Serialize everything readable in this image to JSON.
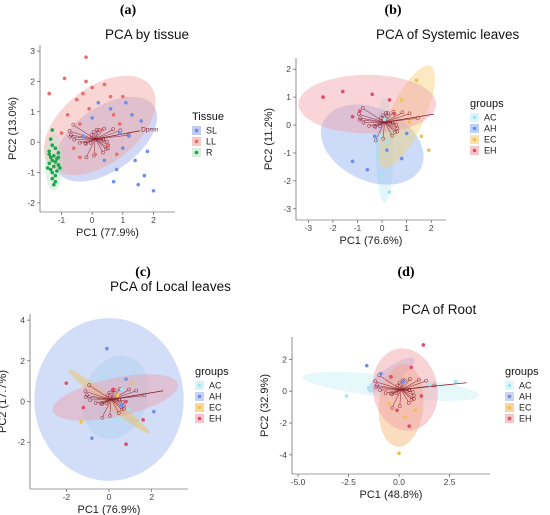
{
  "chart_data": [
    {
      "panel_letter": "(a)",
      "type": "scatter",
      "title": "PCA by tissue",
      "xlabel": "PC1 (77.9%)",
      "ylabel": "PC2 (13.0%)",
      "xlim": [
        -1.7,
        2.7
      ],
      "ylim": [
        -2.3,
        3.2
      ],
      "xticks": [
        -1,
        0,
        1,
        2
      ],
      "yticks": [
        -2,
        -1,
        0,
        1,
        2,
        3
      ],
      "grid": false,
      "legend_title": "Tissue",
      "legend_position": "right",
      "series": [
        {
          "name": "SL",
          "color": "#6f8ee8",
          "fill": "#9aa9e8",
          "ellipse": {
            "cx": 0.45,
            "cy": 0.1,
            "rx": 1.9,
            "ry": 1.05,
            "angle": -35
          },
          "points": [
            [
              0.2,
              1.3
            ],
            [
              0.6,
              1.1
            ],
            [
              1.3,
              0.9
            ],
            [
              1.6,
              0.7
            ],
            [
              0.9,
              0.3
            ],
            [
              1.2,
              0.2
            ],
            [
              1.0,
              -0.2
            ],
            [
              1.4,
              -0.6
            ],
            [
              1.7,
              -1.1
            ],
            [
              0.8,
              -0.9
            ],
            [
              1.5,
              -1.4
            ],
            [
              2.0,
              -1.6
            ],
            [
              0.4,
              -0.6
            ],
            [
              1.1,
              1.3
            ],
            [
              0.0,
              0.8
            ],
            [
              -0.3,
              0.2
            ],
            [
              1.8,
              -0.3
            ],
            [
              0.7,
              -1.3
            ]
          ]
        },
        {
          "name": "LL",
          "color": "#e86d6d",
          "fill": "#f2a49e",
          "ellipse": {
            "cx": 0.25,
            "cy": 0.55,
            "rx": 2.1,
            "ry": 1.25,
            "angle": -38
          },
          "points": [
            [
              -1.4,
              1.6
            ],
            [
              -0.9,
              2.1
            ],
            [
              -0.2,
              2.8
            ],
            [
              0.0,
              1.8
            ],
            [
              0.4,
              1.9
            ],
            [
              -0.5,
              1.4
            ],
            [
              -0.8,
              0.9
            ],
            [
              -0.1,
              1.1
            ],
            [
              0.6,
              1.5
            ],
            [
              -1.0,
              0.3
            ],
            [
              -0.4,
              0.6
            ],
            [
              0.3,
              0.4
            ],
            [
              0.9,
              0.6
            ],
            [
              -0.6,
              -0.2
            ],
            [
              0.1,
              -0.4
            ],
            [
              -0.3,
              1.6
            ],
            [
              0.8,
              -0.4
            ],
            [
              1.0,
              1.5
            ],
            [
              -0.4,
              -0.5
            ],
            [
              0.5,
              -0.1
            ],
            [
              -0.2,
              2.0
            ],
            [
              0.7,
              0.9
            ]
          ]
        },
        {
          "name": "R",
          "color": "#1aa64a",
          "fill": "#bfe3c7",
          "ellipse": {
            "cx": -1.25,
            "cy": -0.65,
            "rx": 0.3,
            "ry": 0.95,
            "angle": 0
          },
          "points": [
            [
              -1.3,
              -0.1
            ],
            [
              -1.2,
              -0.2
            ],
            [
              -1.4,
              -0.3
            ],
            [
              -1.1,
              -0.35
            ],
            [
              -1.25,
              -0.45
            ],
            [
              -1.35,
              -0.5
            ],
            [
              -1.15,
              -0.55
            ],
            [
              -1.3,
              -0.6
            ],
            [
              -1.2,
              -0.65
            ],
            [
              -1.4,
              -0.7
            ],
            [
              -1.1,
              -0.75
            ],
            [
              -1.25,
              -0.8
            ],
            [
              -1.35,
              -0.9
            ],
            [
              -1.15,
              -0.95
            ],
            [
              -1.3,
              -1.0
            ],
            [
              -1.2,
              -1.1
            ],
            [
              -1.05,
              -0.85
            ],
            [
              -1.45,
              -0.85
            ],
            [
              -1.3,
              -1.2
            ],
            [
              -1.2,
              -1.3
            ],
            [
              -1.1,
              -0.5
            ],
            [
              -1.4,
              -0.4
            ],
            [
              -1.3,
              0.4
            ],
            [
              -1.35,
              0.1
            ],
            [
              -1.25,
              -1.4
            ]
          ]
        }
      ],
      "annotation": "Dpmn"
    },
    {
      "panel_letter": "(b)",
      "type": "scatter",
      "title": "PCA of Systemic leaves",
      "xlabel": "PC1 (76.6%)",
      "ylabel": "PC2 (11.2%)",
      "xlim": [
        -3.5,
        2.6
      ],
      "ylim": [
        -3.4,
        2.4
      ],
      "xticks": [
        -3,
        -2,
        -1,
        0,
        1,
        2
      ],
      "yticks": [
        -3,
        -2,
        -1,
        0,
        1,
        2
      ],
      "grid": false,
      "legend_title": "groups",
      "legend_position": "right",
      "series": [
        {
          "name": "AC",
          "color": "#9fe6ef",
          "fill": "#bfeef3",
          "ellipse": {
            "cx": 0.1,
            "cy": -0.9,
            "rx": 0.35,
            "ry": 1.9,
            "angle": 0
          },
          "points": [
            [
              0.0,
              -1.8
            ],
            [
              0.3,
              -2.4
            ],
            [
              -0.2,
              -1.1
            ],
            [
              0.2,
              -0.6
            ],
            [
              0.1,
              0.2
            ]
          ]
        },
        {
          "name": "AH",
          "color": "#6f8ee8",
          "fill": "#8fb0ee",
          "ellipse": {
            "cx": -0.4,
            "cy": -0.7,
            "rx": 2.2,
            "ry": 1.3,
            "angle": 25
          },
          "points": [
            [
              -1.2,
              -1.3
            ],
            [
              -0.6,
              -1.6
            ],
            [
              0.2,
              -0.9
            ],
            [
              0.8,
              -1.2
            ],
            [
              -0.3,
              -0.4
            ],
            [
              1.0,
              -0.3
            ]
          ]
        },
        {
          "name": "EC",
          "color": "#f0c24b",
          "fill": "#f5cf75",
          "ellipse": {
            "cx": 1.0,
            "cy": 0.3,
            "rx": 0.7,
            "ry": 2.0,
            "angle": 25
          },
          "points": [
            [
              1.4,
              1.6
            ],
            [
              0.8,
              0.9
            ],
            [
              1.6,
              -0.4
            ],
            [
              1.1,
              0.1
            ],
            [
              1.9,
              -0.9
            ]
          ]
        },
        {
          "name": "EH",
          "color": "#e34a6b",
          "fill": "#f2a0a8",
          "ellipse": {
            "cx": -0.6,
            "cy": 0.75,
            "rx": 2.8,
            "ry": 1.05,
            "angle": 0
          },
          "points": [
            [
              -2.4,
              1.0
            ],
            [
              -1.6,
              1.2
            ],
            [
              -0.9,
              0.5
            ],
            [
              -0.4,
              1.1
            ],
            [
              0.3,
              0.9
            ],
            [
              -1.2,
              0.3
            ],
            [
              0.5,
              0.4
            ]
          ]
        }
      ]
    },
    {
      "panel_letter": "(c)",
      "type": "scatter",
      "title": "PCA of Local leaves",
      "xlabel": "PC1 (76.9%)",
      "ylabel": "PC2 (17.7%)",
      "xlim": [
        -3.7,
        3.7
      ],
      "ylim": [
        -4.3,
        4.3
      ],
      "xticks": [
        -2,
        0,
        2
      ],
      "yticks": [
        -2,
        0,
        2,
        4
      ],
      "grid": false,
      "legend_title": "groups",
      "legend_position": "right",
      "series": [
        {
          "name": "AC",
          "color": "#9fe6ef",
          "fill": "#bfe8ef",
          "ellipse": {
            "cx": 0.3,
            "cy": 0.2,
            "rx": 1.5,
            "ry": 2.1,
            "angle": 20
          },
          "points": [
            [
              0.6,
              0.6
            ],
            [
              0.9,
              -0.4
            ],
            [
              -0.2,
              1.2
            ],
            [
              0.4,
              -0.9
            ]
          ]
        },
        {
          "name": "AH",
          "color": "#6f8ee8",
          "fill": "#9cb4ee",
          "ellipse": {
            "cx": 0.0,
            "cy": 0.1,
            "rx": 3.5,
            "ry": 4.0,
            "angle": 0
          },
          "points": [
            [
              -0.1,
              2.6
            ],
            [
              2.1,
              -0.5
            ],
            [
              -0.8,
              -1.8
            ],
            [
              0.8,
              1.1
            ],
            [
              0.6,
              -0.2
            ]
          ]
        },
        {
          "name": "EC",
          "color": "#f0c24b",
          "fill": "#f0c24b",
          "ellipse": {
            "cx": 0.0,
            "cy": 0.0,
            "rx": 2.4,
            "ry": 0.25,
            "angle": 38
          },
          "points": [
            [
              -1.3,
              -1.0
            ],
            [
              1.1,
              0.9
            ],
            [
              0.4,
              0.3
            ]
          ]
        },
        {
          "name": "EH",
          "color": "#e34a6b",
          "fill": "#f0a0aa",
          "ellipse": {
            "cx": 0.3,
            "cy": 0.2,
            "rx": 3.0,
            "ry": 0.95,
            "angle": -12
          },
          "points": [
            [
              -2.0,
              0.9
            ],
            [
              -1.2,
              -0.3
            ],
            [
              0.2,
              0.6
            ],
            [
              0.8,
              0.0
            ],
            [
              1.6,
              -0.9
            ],
            [
              0.8,
              -2.1
            ]
          ]
        }
      ]
    },
    {
      "panel_letter": "(d)",
      "type": "scatter",
      "title": "PCA of Root",
      "xlabel": "PC1 (48.8%)",
      "ylabel": "PC2 (32.9%)",
      "xlim": [
        -5.3,
        4.5
      ],
      "ylim": [
        -5.2,
        3.4
      ],
      "xticks": [
        -5.0,
        -2.5,
        0.0,
        2.5
      ],
      "xtick_labels": [
        "-5.0",
        "-2.5",
        "0.0",
        "2.5"
      ],
      "yticks": [
        -4,
        -2,
        0,
        2
      ],
      "grid": false,
      "legend_title": "groups",
      "legend_position": "right",
      "series": [
        {
          "name": "AC",
          "color": "#9fe6ef",
          "fill": "#c7f0f5",
          "ellipse": {
            "cx": -0.4,
            "cy": 0.3,
            "rx": 4.4,
            "ry": 0.7,
            "angle": 6
          },
          "points": [
            [
              -2.6,
              -0.3
            ],
            [
              -1.5,
              0.2
            ],
            [
              1.5,
              0.4
            ],
            [
              2.8,
              0.6
            ]
          ]
        },
        {
          "name": "AH",
          "color": "#6f8ee8",
          "fill": "#a7b8ee",
          "ellipse": {
            "cx": -0.4,
            "cy": 1.0,
            "rx": 1.4,
            "ry": 0.5,
            "angle": -35
          },
          "points": [
            [
              -1.6,
              1.6
            ],
            [
              -0.9,
              1.1
            ],
            [
              0.2,
              0.6
            ]
          ]
        },
        {
          "name": "EC",
          "color": "#f0c24b",
          "fill": "#f3b470",
          "ellipse": {
            "cx": 0.1,
            "cy": -0.9,
            "rx": 1.1,
            "ry": 2.6,
            "angle": 5
          },
          "points": [
            [
              0.0,
              -3.9
            ],
            [
              0.3,
              -1.6
            ],
            [
              -0.5,
              -0.8
            ],
            [
              0.8,
              -1.2
            ]
          ]
        },
        {
          "name": "EH",
          "color": "#e34a6b",
          "fill": "#f19ca4",
          "ellipse": {
            "cx": 0.3,
            "cy": 0.1,
            "rx": 1.6,
            "ry": 2.6,
            "angle": -10
          },
          "points": [
            [
              1.2,
              2.9
            ],
            [
              0.6,
              1.5
            ],
            [
              -0.4,
              0.9
            ],
            [
              1.1,
              -0.3
            ],
            [
              -0.1,
              -1.2
            ],
            [
              0.5,
              -2.2
            ]
          ]
        }
      ]
    }
  ]
}
